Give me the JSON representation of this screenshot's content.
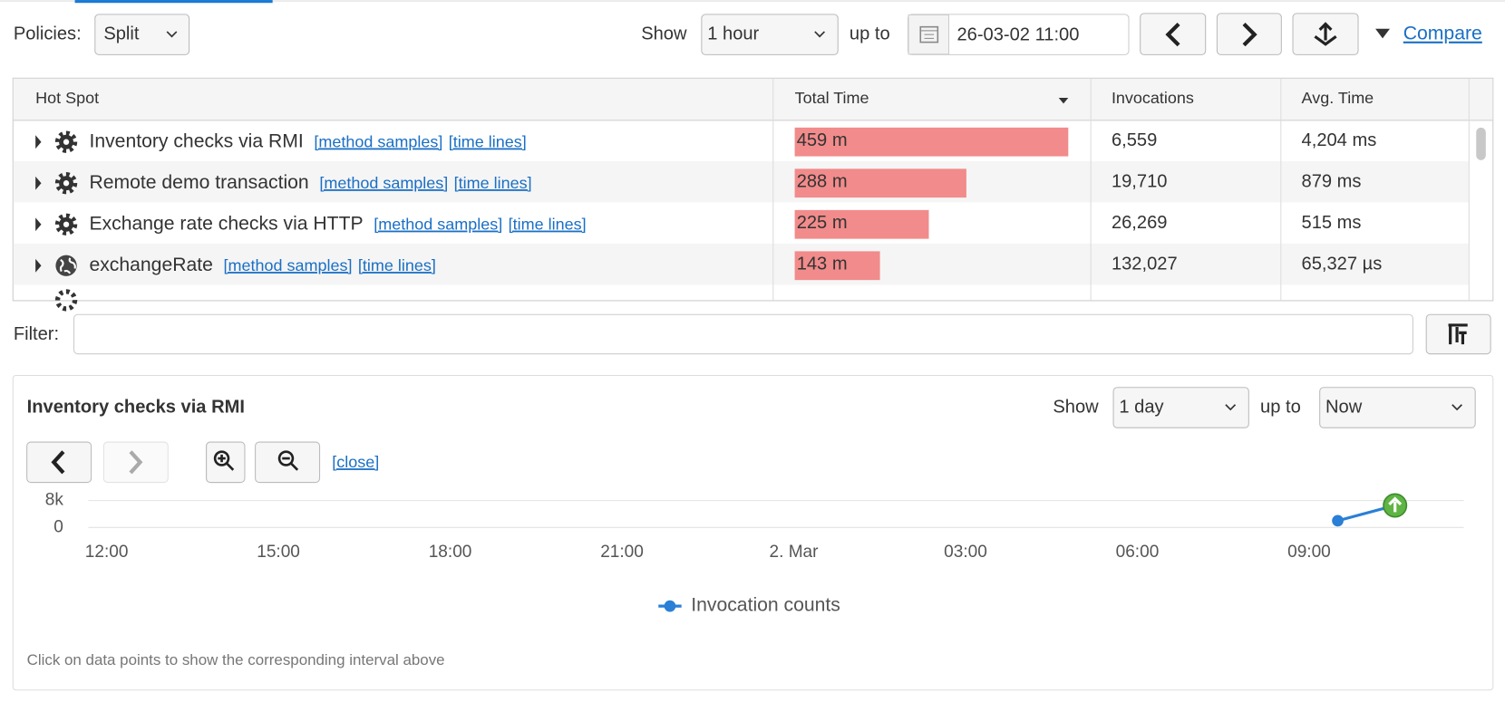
{
  "toolbar": {
    "policies_label": "Policies:",
    "policy": "Split",
    "show_label": "Show",
    "range": "1 hour",
    "up_to_label": "up to",
    "date": "26-03-02 11:00",
    "compare": "Compare"
  },
  "table": {
    "columns": [
      "Hot Spot",
      "Total Time",
      "Invocations",
      "Avg. Time"
    ],
    "rows": [
      {
        "name": "Inventory checks via RMI",
        "links": [
          "[method samples]",
          "[time lines]"
        ],
        "total_time": {
          "value": 459,
          "label": "459 m"
        },
        "invocations": "6,559",
        "avg_time": "4,204 ms"
      },
      {
        "name": "Remote demo transaction",
        "links": [
          "[method samples]",
          "[time lines]"
        ],
        "total_time": {
          "value": 288,
          "label": "288 m"
        },
        "invocations": "19,710",
        "avg_time": "879 ms"
      },
      {
        "name": "Exchange rate checks via HTTP",
        "links": [
          "[method samples]",
          "[time lines]"
        ],
        "total_time": {
          "value": 225,
          "label": "225 m"
        },
        "invocations": "26,269",
        "avg_time": "515 ms"
      },
      {
        "name": "exchangeRate",
        "links": [
          "[method samples]",
          "[time lines]"
        ],
        "total_time": {
          "value": 143,
          "label": "143 m"
        },
        "invocations": "132,027",
        "avg_time": "65,327 µs"
      }
    ]
  },
  "filter_label": "Filter:",
  "detail": {
    "title": "Inventory checks via RMI",
    "show_label": "Show",
    "range": "1 day",
    "up_to_label": "up to",
    "up_to": "Now",
    "close": "[close]",
    "note": "Click on data points to show the corresponding interval above"
  },
  "chart_data": {
    "type": "line",
    "x": [
      21.5,
      22.5
    ],
    "series": [
      {
        "name": "Invocation counts",
        "color": "#2a7fd6",
        "values": [
          2000,
          6559
        ]
      }
    ],
    "xlim": [
      -0.32,
      23.7
    ],
    "xticks": [
      {
        "value": 0,
        "label": "12:00"
      },
      {
        "value": 3,
        "label": "15:00"
      },
      {
        "value": 6,
        "label": "18:00"
      },
      {
        "value": 9,
        "label": "21:00"
      },
      {
        "value": 12,
        "label": "2. Mar"
      },
      {
        "value": 15,
        "label": "03:00"
      },
      {
        "value": 18,
        "label": "06:00"
      },
      {
        "value": 21,
        "label": "09:00"
      }
    ],
    "ylim": [
      0,
      8000
    ],
    "yticks": [
      0,
      {
        "value": 8000,
        "label": "8k"
      }
    ],
    "grid": true
  }
}
